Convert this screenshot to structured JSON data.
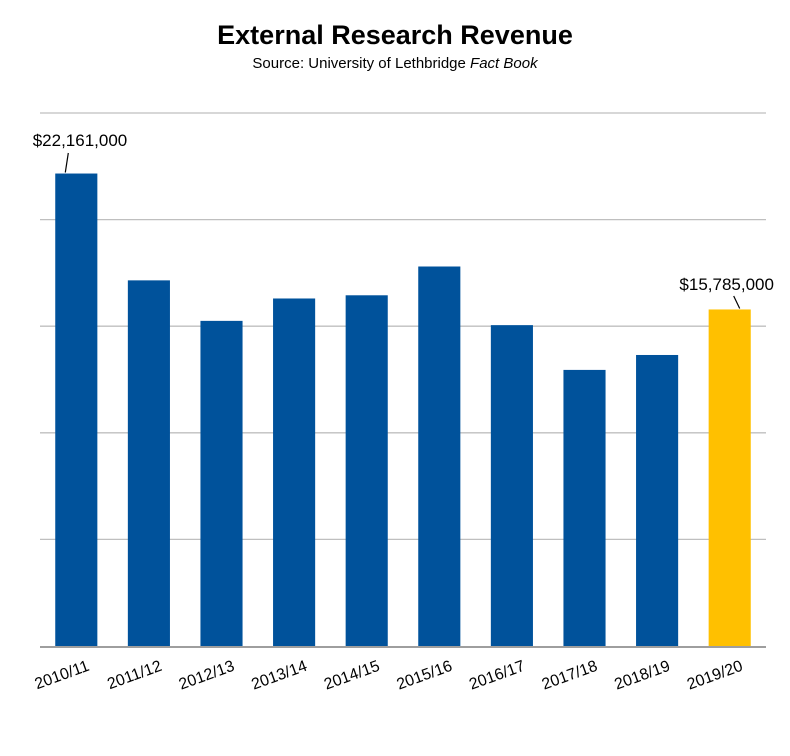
{
  "chart_data": {
    "type": "bar",
    "title": "External Research Revenue",
    "subtitle_prefix": "Source: University of Lethbridge ",
    "subtitle_italic": "Fact Book",
    "categories": [
      "2010/11",
      "2011/12",
      "2012/13",
      "2013/14",
      "2014/15",
      "2015/16",
      "2016/17",
      "2017/18",
      "2018/19",
      "2019/20"
    ],
    "values": [
      22161000,
      17150000,
      15250000,
      16300000,
      16450000,
      17800000,
      15050000,
      12950000,
      13650000,
      15785000
    ],
    "bar_colors": [
      "#00529b",
      "#00529b",
      "#00529b",
      "#00529b",
      "#00529b",
      "#00529b",
      "#00529b",
      "#00529b",
      "#00529b",
      "#ffc000"
    ],
    "data_labels": [
      {
        "index": 0,
        "text": "$22,161,000"
      },
      {
        "index": 9,
        "text": "$15,785,000"
      }
    ],
    "ylim": [
      0,
      25000000
    ],
    "grid_step": 5000000,
    "grid": true,
    "y_tick_labels_shown": false,
    "xlabel": "",
    "ylabel": ""
  }
}
